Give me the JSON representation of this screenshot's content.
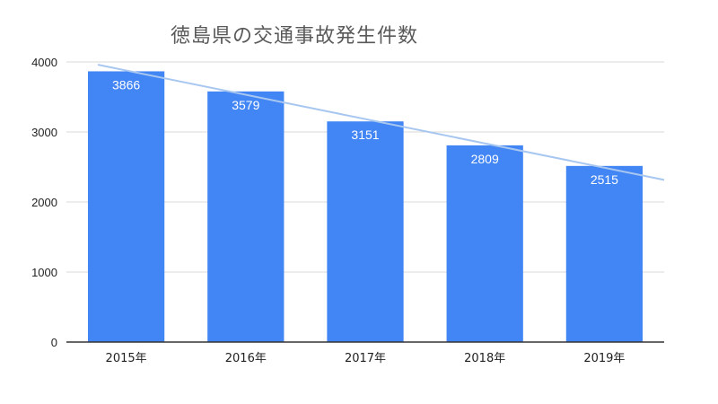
{
  "chart_data": {
    "type": "bar",
    "title": "徳島県の交通事故発生件数",
    "categories": [
      "2015年",
      "2016年",
      "2017年",
      "2018年",
      "2019年"
    ],
    "values": [
      3866,
      3579,
      3151,
      2809,
      2515
    ],
    "data_labels": [
      "3866",
      "3579",
      "3151",
      "2809",
      "2515"
    ],
    "y_ticks": [
      "0",
      "1000",
      "2000",
      "3000",
      "4000"
    ],
    "ylim": [
      0,
      4000
    ],
    "trendline": {
      "type": "linear",
      "color": "#a8c7f0"
    },
    "grid": true,
    "legend": "none",
    "xlabel": "",
    "ylabel": "",
    "colors": {
      "bar": "#4285f4",
      "grid": "#d9d9d9",
      "axis": "#333333",
      "text": "#222222",
      "label": "#ffffff"
    }
  }
}
